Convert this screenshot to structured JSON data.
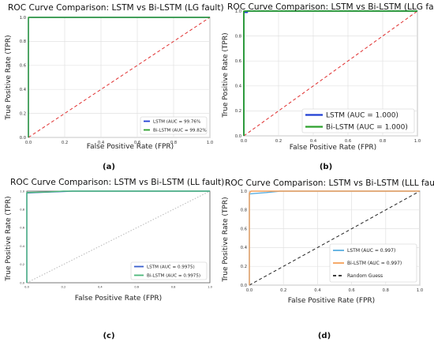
{
  "chart_data": [
    {
      "panel_label": "(a)",
      "type": "line",
      "title": "ROC Curve Comparison: LSTM vs Bi-LSTM (LG fault)",
      "xlabel": "False Positive Rate (FPR)",
      "ylabel": "True Positive Rate (TPR)",
      "xlim": [
        0,
        1
      ],
      "ylim": [
        0,
        1
      ],
      "xticks": [
        "0.0",
        "0.2",
        "0.4",
        "0.6",
        "0.8",
        "1.0"
      ],
      "yticks": [
        "0.0",
        "0.2",
        "0.4",
        "0.6",
        "0.8",
        "1.0"
      ],
      "grid": true,
      "legend_position": "lower-right",
      "series": [
        {
          "name": "LSTM (AUC = 99.76%",
          "color": "#1f3fd4",
          "x": [
            0,
            0,
            0.004,
            1
          ],
          "y": [
            0,
            0.995,
            1,
            1
          ]
        },
        {
          "name": "Bi-LSTM (AUC = 99.82%",
          "color": "#2ca02c",
          "x": [
            0,
            0,
            1
          ],
          "y": [
            0,
            1,
            1
          ]
        }
      ],
      "reference_line": {
        "name": "",
        "color": "#e03030",
        "style": "dashed"
      }
    },
    {
      "panel_label": "(b)",
      "type": "line",
      "title": "ROC Curve Comparison: LSTM vs Bi-LSTM (LLG fault",
      "xlabel": "False Positive Rate (FPR)",
      "ylabel": "True Positive Rate (TPR)",
      "xlim": [
        0,
        1
      ],
      "ylim": [
        0,
        1
      ],
      "xticks": [
        "0.0",
        "0.2",
        "0.4",
        "0.6",
        "0.8",
        "1.0"
      ],
      "yticks": [
        "0.0",
        "0.2",
        "0.4",
        "0.6",
        "0.8",
        "1.0"
      ],
      "grid": true,
      "legend_position": "lower-right",
      "series": [
        {
          "name": "LSTM (AUC = 1.000)",
          "color": "#1f3fd4",
          "x": [
            0,
            0,
            0.02,
            0.02,
            1
          ],
          "y": [
            0,
            0.99,
            0.99,
            1,
            1
          ]
        },
        {
          "name": "Bi-LSTM (AUC = 1.000)",
          "color": "#2ca02c",
          "x": [
            0,
            0,
            1
          ],
          "y": [
            0,
            1,
            1
          ]
        }
      ],
      "reference_line": {
        "name": "",
        "color": "#e03030",
        "style": "dashed"
      }
    },
    {
      "panel_label": "(c)",
      "type": "line",
      "title": "ROC Curve Comparison: LSTM vs Bi-LSTM (LL fault)",
      "xlabel": "False Positive Rate (FPR)",
      "ylabel": "True Positive Rate (TPR)",
      "xlim": [
        0,
        1
      ],
      "ylim": [
        0,
        1
      ],
      "xticks": [
        "0.0",
        "0.2",
        "0.4",
        "0.6",
        "0.8",
        "1.0"
      ],
      "yticks": [
        "0.0",
        "0.2",
        "0.4",
        "0.6",
        "0.8",
        "1.0"
      ],
      "grid": false,
      "legend_position": "lower-right",
      "series": [
        {
          "name": "LSTM (AUC = 0.9975)",
          "color": "#3a5fcd",
          "x": [
            0,
            0,
            0.05,
            0.12,
            0.25,
            1
          ],
          "y": [
            0,
            0.98,
            0.985,
            0.99,
            1,
            1
          ]
        },
        {
          "name": "Bi-LSTM (AUC = 0.9975)",
          "color": "#4cb87a",
          "x": [
            0,
            0,
            0.1,
            0.2,
            1
          ],
          "y": [
            0,
            0.985,
            0.99,
            1,
            1
          ]
        }
      ],
      "reference_line": {
        "name": "",
        "color": "#b8b8b8",
        "style": "dotted"
      }
    },
    {
      "panel_label": "(d)",
      "type": "line",
      "title": "ROC Curve Comparison: LSTM vs Bi-LSTM (LLL fault",
      "xlabel": "False Positive Rate (FPR)",
      "ylabel": "True Positive Rate (TPR)",
      "xlim": [
        0,
        1
      ],
      "ylim": [
        0,
        1
      ],
      "xticks": [
        "0.0",
        "0.2",
        "0.4",
        "0.6",
        "0.8",
        "1.0"
      ],
      "yticks": [
        "0.0",
        "0.2",
        "0.4",
        "0.6",
        "0.8",
        "1.0"
      ],
      "grid": true,
      "legend_position": "lower-right",
      "series": [
        {
          "name": "LSTM (AUC = 0.997)",
          "color": "#5aaee0",
          "x": [
            0,
            0,
            0.03,
            0.1,
            0.18,
            1
          ],
          "y": [
            0,
            0.97,
            0.975,
            0.985,
            1,
            1
          ]
        },
        {
          "name": "Bi-LSTM (AUC = 0.997)",
          "color": "#f5a05a",
          "x": [
            0,
            0,
            0.01,
            1
          ],
          "y": [
            0,
            0.98,
            1,
            1
          ]
        }
      ],
      "reference_line": {
        "name": "Random Guess",
        "color": "#222222",
        "style": "dashed"
      }
    }
  ]
}
